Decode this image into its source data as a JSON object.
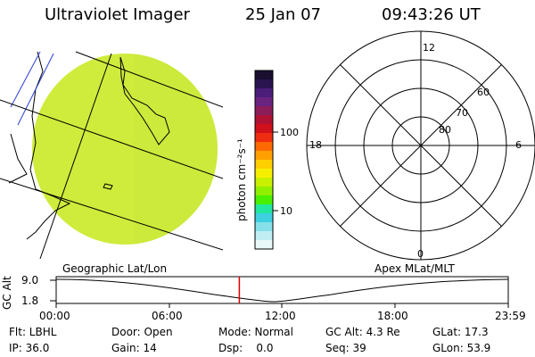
{
  "header": {
    "instrument": "Ultraviolet Imager",
    "date": "25 Jan 07",
    "time": "09:43:26 UT"
  },
  "colorbar": {
    "label": "photon cm⁻²s⁻¹",
    "ticks": [
      "100",
      "10"
    ],
    "colors": [
      "#1a0f2e",
      "#2a1450",
      "#4b1e7a",
      "#6a237e",
      "#8b1d5b",
      "#b01236",
      "#d0101b",
      "#ef2d10",
      "#ff6a00",
      "#ffa000",
      "#ffcf00",
      "#f6f000",
      "#c8f000",
      "#90f000",
      "#49f000",
      "#22e7a0",
      "#3ed0e0",
      "#86e0ea",
      "#c0eef3",
      "#e8f7f8"
    ]
  },
  "left_panel": {
    "label": "Geographic Lat/Lon",
    "fill_color": "#cceb3b"
  },
  "right_panel": {
    "label": "Apex MLat/MLT",
    "lat_labels": [
      "80",
      "70",
      "60"
    ],
    "mlt_labels": [
      "12",
      "18",
      "6",
      "0"
    ]
  },
  "timeline": {
    "ylabel": "GC Alt",
    "yticks": [
      "9.0",
      "1.8"
    ],
    "xticks": [
      "00:00",
      "06:00",
      "12:00",
      "18:00",
      "23:59"
    ],
    "current_time": "09:43",
    "marker_color": "#e00000"
  },
  "status": {
    "rows": [
      [
        "Flt: LBHL",
        "Door: Open",
        "Mode: Normal",
        "GC Alt: 4.3 Re",
        "GLat: 17.3"
      ],
      [
        "IP: 36.0",
        "Gain: 14",
        "Dsp:    0.0",
        "Seq: 39",
        "GLon: 53.9"
      ]
    ]
  }
}
